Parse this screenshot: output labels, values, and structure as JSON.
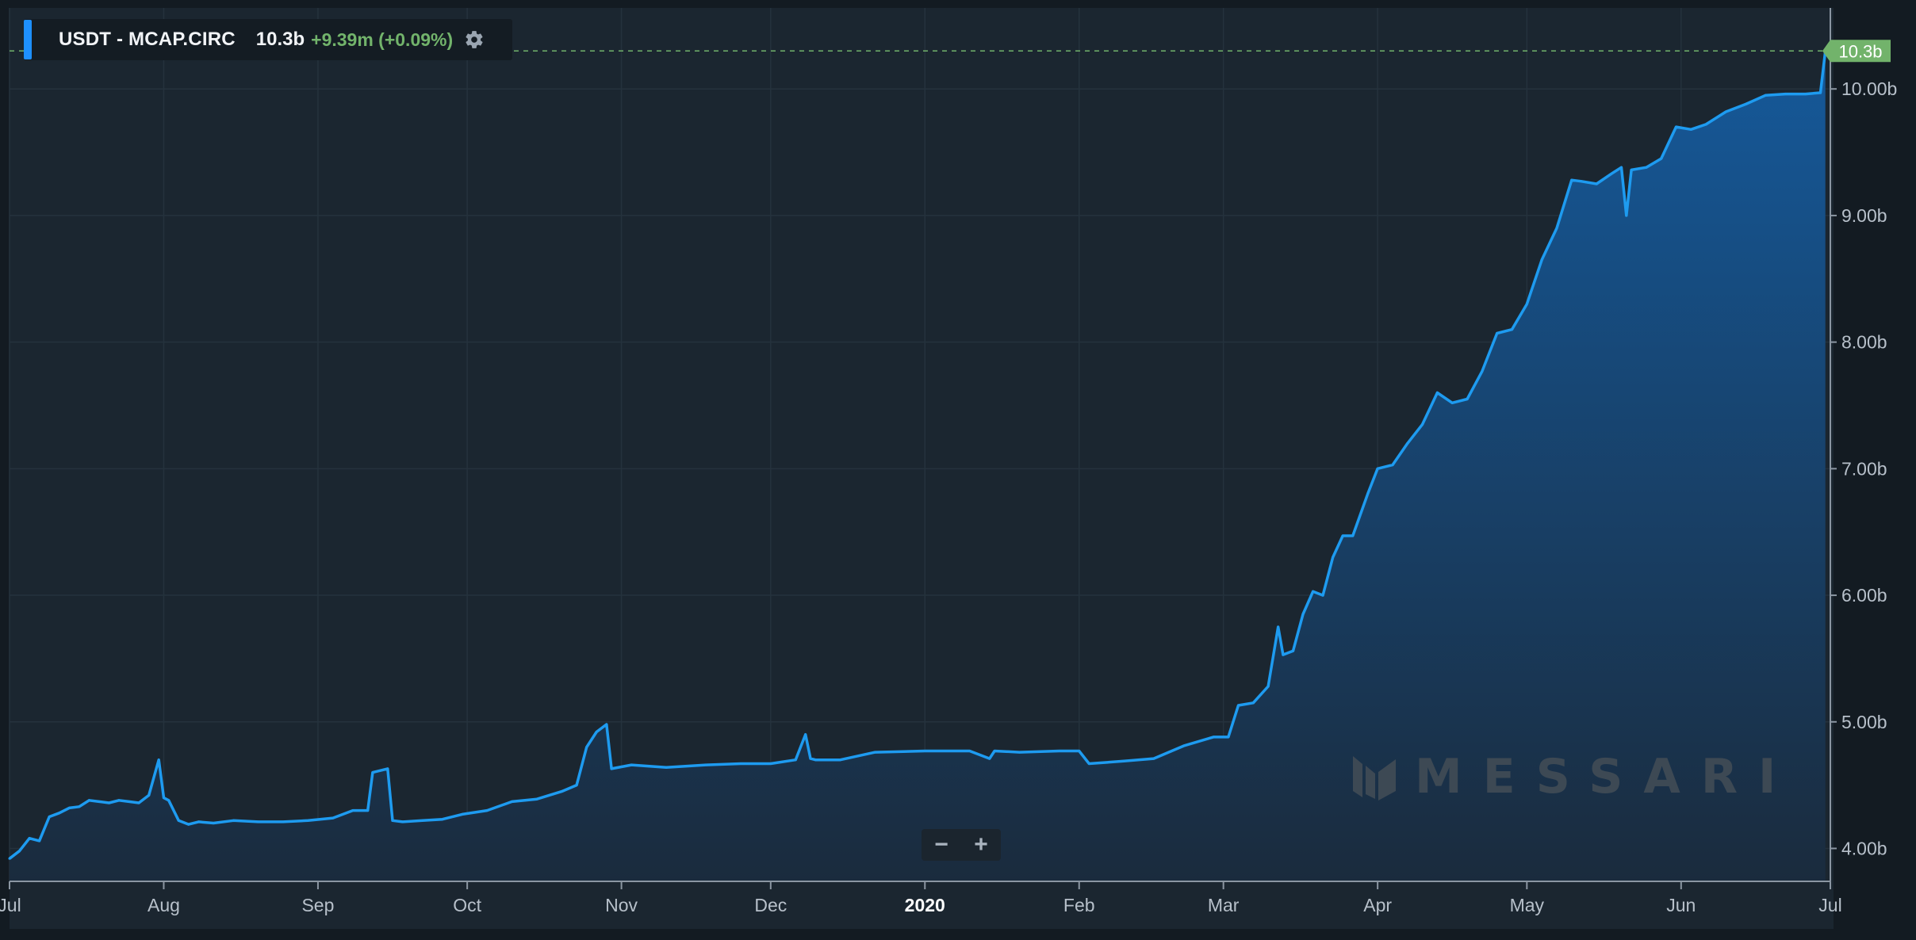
{
  "legend": {
    "symbol": "USDT - MCAP.CIRC",
    "value": "10.3b",
    "change": "+9.39m (+0.09%)",
    "settings_icon": "gear-icon",
    "series_color": "#1e90ff"
  },
  "last_value_tag": "10.3b",
  "zoom": {
    "minus_label": "−",
    "plus_label": "+"
  },
  "watermark": {
    "text": "MESSARI",
    "logo_icon": "messari-logo-icon"
  },
  "colors": {
    "background": "#1b2630",
    "line": "#1e9bf0",
    "area_top": "#15599a",
    "area_bottom": "#1a2b3d",
    "grid": "#25323d",
    "positive": "#72b36b"
  },
  "chart_data": {
    "type": "area",
    "title": "USDT - MCAP.CIRC",
    "xlabel": "",
    "ylabel": "",
    "x_ticks": [
      "Jul",
      "Aug",
      "Sep",
      "Oct",
      "Nov",
      "Dec",
      "2020",
      "Feb",
      "Mar",
      "Apr",
      "May",
      "Jun",
      "Jul"
    ],
    "y_ticks": [
      "4.00b",
      "5.00b",
      "6.00b",
      "7.00b",
      "8.00b",
      "9.00b",
      "10.00b"
    ],
    "ylim": [
      3.74,
      10.64
    ],
    "xlim": [
      "2019-07-01",
      "2020-07-01"
    ],
    "grid": true,
    "last_value": 10.3,
    "series": [
      {
        "name": "USDT - MCAP.CIRC",
        "unit": "billion USD",
        "x": [
          "2019-07-01",
          "2019-07-03",
          "2019-07-05",
          "2019-07-07",
          "2019-07-09",
          "2019-07-11",
          "2019-07-13",
          "2019-07-15",
          "2019-07-17",
          "2019-07-19",
          "2019-07-21",
          "2019-07-23",
          "2019-07-25",
          "2019-07-27",
          "2019-07-29",
          "2019-07-31",
          "2019-08-01",
          "2019-08-02",
          "2019-08-04",
          "2019-08-06",
          "2019-08-08",
          "2019-08-11",
          "2019-08-15",
          "2019-08-20",
          "2019-08-25",
          "2019-08-30",
          "2019-09-04",
          "2019-09-08",
          "2019-09-11",
          "2019-09-12",
          "2019-09-15",
          "2019-09-16",
          "2019-09-18",
          "2019-09-22",
          "2019-09-26",
          "2019-09-30",
          "2019-10-05",
          "2019-10-10",
          "2019-10-15",
          "2019-10-20",
          "2019-10-23",
          "2019-10-25",
          "2019-10-27",
          "2019-10-29",
          "2019-10-30",
          "2019-11-03",
          "2019-11-10",
          "2019-11-18",
          "2019-11-25",
          "2019-12-01",
          "2019-12-06",
          "2019-12-08",
          "2019-12-09",
          "2019-12-10",
          "2019-12-15",
          "2019-12-22",
          "2020-01-01",
          "2020-01-10",
          "2020-01-14",
          "2020-01-15",
          "2020-01-20",
          "2020-01-28",
          "2020-02-01",
          "2020-02-03",
          "2020-02-10",
          "2020-02-16",
          "2020-02-22",
          "2020-02-28",
          "2020-03-02",
          "2020-03-04",
          "2020-03-07",
          "2020-03-10",
          "2020-03-12",
          "2020-03-13",
          "2020-03-15",
          "2020-03-17",
          "2020-03-19",
          "2020-03-21",
          "2020-03-23",
          "2020-03-25",
          "2020-03-27",
          "2020-03-30",
          "2020-04-01",
          "2020-04-04",
          "2020-04-07",
          "2020-04-10",
          "2020-04-13",
          "2020-04-16",
          "2020-04-19",
          "2020-04-22",
          "2020-04-25",
          "2020-04-28",
          "2020-05-01",
          "2020-05-04",
          "2020-05-07",
          "2020-05-10",
          "2020-05-12",
          "2020-05-15",
          "2020-05-18",
          "2020-05-20",
          "2020-05-21",
          "2020-05-22",
          "2020-05-25",
          "2020-05-28",
          "2020-05-31",
          "2020-06-03",
          "2020-06-06",
          "2020-06-10",
          "2020-06-14",
          "2020-06-18",
          "2020-06-22",
          "2020-06-26",
          "2020-06-29",
          "2020-06-30"
        ],
        "values": [
          3.92,
          3.98,
          4.08,
          4.06,
          4.25,
          4.28,
          4.32,
          4.33,
          4.38,
          4.37,
          4.36,
          4.38,
          4.37,
          4.36,
          4.42,
          4.7,
          4.4,
          4.38,
          4.22,
          4.19,
          4.21,
          4.2,
          4.22,
          4.21,
          4.21,
          4.22,
          4.24,
          4.3,
          4.3,
          4.6,
          4.63,
          4.22,
          4.21,
          4.22,
          4.23,
          4.27,
          4.3,
          4.37,
          4.39,
          4.45,
          4.5,
          4.8,
          4.92,
          4.98,
          4.63,
          4.66,
          4.64,
          4.66,
          4.67,
          4.67,
          4.7,
          4.9,
          4.71,
          4.7,
          4.7,
          4.76,
          4.77,
          4.77,
          4.71,
          4.77,
          4.76,
          4.77,
          4.77,
          4.67,
          4.69,
          4.71,
          4.81,
          4.88,
          4.88,
          5.13,
          5.15,
          5.28,
          5.75,
          5.53,
          5.56,
          5.85,
          6.03,
          6.0,
          6.3,
          6.47,
          6.47,
          6.8,
          7.0,
          7.03,
          7.2,
          7.35,
          7.6,
          7.52,
          7.55,
          7.77,
          8.07,
          8.1,
          8.3,
          8.65,
          8.9,
          9.28,
          9.27,
          9.25,
          9.33,
          9.38,
          9.0,
          9.36,
          9.38,
          9.45,
          9.7,
          9.68,
          9.72,
          9.82,
          9.88,
          9.95,
          9.96,
          9.96,
          9.97,
          10.3
        ]
      }
    ]
  }
}
